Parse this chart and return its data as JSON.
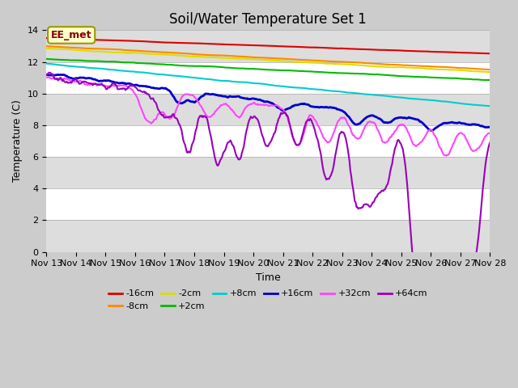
{
  "title": "Soil/Water Temperature Set 1",
  "xlabel": "Time",
  "ylabel": "Temperature (C)",
  "ylim": [
    0,
    14
  ],
  "yticks": [
    0,
    2,
    4,
    6,
    8,
    10,
    12,
    14
  ],
  "x_labels": [
    "Nov 13",
    "Nov 14",
    "Nov 15",
    "Nov 16",
    "Nov 17",
    "Nov 18",
    "Nov 19",
    "Nov 20",
    "Nov 21",
    "Nov 22",
    "Nov 23",
    "Nov 24",
    "Nov 25",
    "Nov 26",
    "Nov 27",
    "Nov 28"
  ],
  "series_order": [
    "-16cm",
    "-8cm",
    "-2cm",
    "+2cm",
    "+8cm",
    "+16cm",
    "+32cm",
    "+64cm"
  ],
  "series": {
    "-16cm": {
      "color": "#dd0000",
      "lw": 1.5
    },
    "-8cm": {
      "color": "#ff8800",
      "lw": 1.5
    },
    "-2cm": {
      "color": "#dddd00",
      "lw": 1.5
    },
    "+2cm": {
      "color": "#00bb00",
      "lw": 1.5
    },
    "+8cm": {
      "color": "#00cccc",
      "lw": 1.5
    },
    "+16cm": {
      "color": "#0000cc",
      "lw": 2.0
    },
    "+32cm": {
      "color": "#ff44ff",
      "lw": 1.5
    },
    "+64cm": {
      "color": "#9900bb",
      "lw": 1.5
    }
  },
  "legend_label": "EE_met",
  "fig_bg": "#cccccc",
  "plot_bg": "#ffffff",
  "band_color": "#dddddd",
  "title_fontsize": 12,
  "axis_fontsize": 9,
  "tick_fontsize": 8,
  "band_ranges": [
    [
      0,
      2
    ],
    [
      4,
      6
    ],
    [
      8,
      10
    ],
    [
      12,
      14
    ]
  ]
}
